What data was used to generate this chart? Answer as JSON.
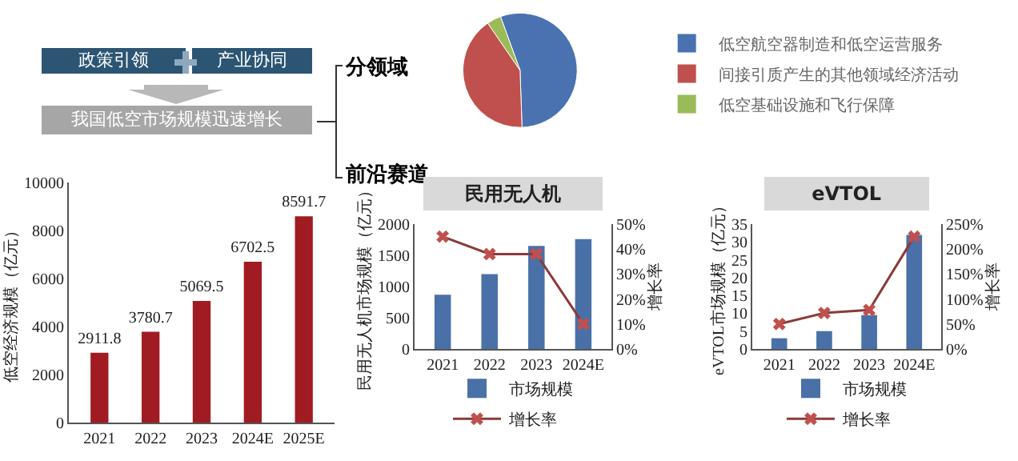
{
  "chart_data": [
    {
      "type": "other",
      "annotations": [
        "政策引领",
        "产业协同",
        "我国低空市场规模迅速增长",
        "分领域",
        "前沿赛道"
      ]
    },
    {
      "type": "bar",
      "ylabel": "低空经济规模（亿元）",
      "categories": [
        "2021",
        "2022",
        "2023",
        "2024E",
        "2025E"
      ],
      "values": [
        2911.8,
        3780.7,
        5069.5,
        6702.5,
        8591.7
      ],
      "color": "#a11c22",
      "ylim": [
        0,
        10000
      ],
      "yticks": [
        0,
        2000,
        4000,
        6000,
        8000,
        10000
      ],
      "data_labels": true,
      "grid": false,
      "legend": false
    },
    {
      "type": "pie",
      "categories": [
        "低空航空器制造和低空运营服务",
        "间接引质产生的其他领域经济活动",
        "低空基础设施和飞行保障"
      ],
      "values": [
        55,
        41,
        4
      ],
      "colors": [
        "#4a72b0",
        "#c0504d",
        "#9bbb59"
      ],
      "legend": "right"
    },
    {
      "type": "bar",
      "title": "民用无人机",
      "ylabel": "民用无人机市场规模（亿元）",
      "y2label": "增长率",
      "categories": [
        "2021",
        "2022",
        "2023",
        "2024E"
      ],
      "ylim": [
        0,
        2000
      ],
      "yticks": [
        0,
        500,
        1000,
        1500,
        2000
      ],
      "y2lim": [
        0,
        50
      ],
      "y2ticks": [
        {
          "value": 0,
          "label": "0%"
        },
        {
          "value": 10,
          "label": "10%"
        },
        {
          "value": 20,
          "label": "20%"
        },
        {
          "value": 30,
          "label": "30%"
        },
        {
          "value": 40,
          "label": "40%"
        },
        {
          "value": 50,
          "label": "50%"
        }
      ],
      "marker": "cross",
      "legend": "bottom",
      "grid": false,
      "series": [
        {
          "name": "市场规模",
          "type": "bar",
          "color": "#4a70a8",
          "values": [
            870,
            1200,
            1650,
            1760
          ]
        },
        {
          "name": "增长率",
          "type": "line",
          "axis": "y2",
          "color": "#8b3a3a",
          "values": [
            45,
            38,
            38,
            10
          ]
        }
      ]
    },
    {
      "type": "bar",
      "title": "eVTOL",
      "ylabel": "eVTOL市场规模（亿元）",
      "y2label": "增长率",
      "categories": [
        "2021",
        "2022",
        "2023",
        "2024E"
      ],
      "ylim": [
        0,
        35
      ],
      "yticks": [
        0,
        5,
        10,
        15,
        20,
        25,
        30,
        35
      ],
      "y2lim": [
        0,
        250
      ],
      "y2ticks": [
        {
          "value": 0,
          "label": "0%"
        },
        {
          "value": 50,
          "label": "50%"
        },
        {
          "value": 100,
          "label": "100%"
        },
        {
          "value": 150,
          "label": "150%"
        },
        {
          "value": 200,
          "label": "200%"
        },
        {
          "value": 250,
          "label": "250%"
        }
      ],
      "marker": "cross",
      "legend": "bottom",
      "grid": false,
      "series": [
        {
          "name": "市场规模",
          "type": "bar",
          "color": "#4a70a8",
          "values": [
            3,
            5,
            9.5,
            32
          ]
        },
        {
          "name": "增长率",
          "type": "line",
          "axis": "y2",
          "color": "#8b3a3a",
          "values": [
            50,
            72,
            78,
            225
          ]
        }
      ]
    }
  ]
}
